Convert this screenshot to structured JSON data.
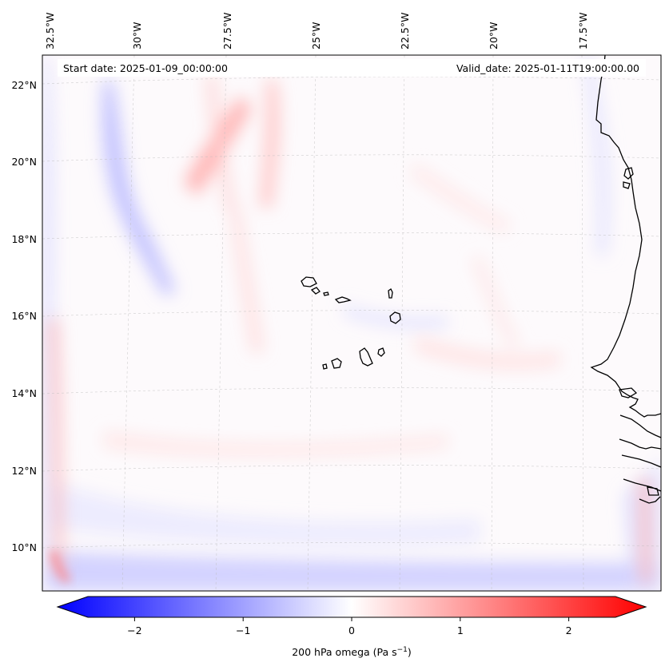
{
  "map": {
    "start_date": "Start date: 2025-01-09_00:00:00",
    "valid_date": "Valid_date: 2025-01-11T19:00:00.00",
    "lon_labels": [
      "32.5°W",
      "30°W",
      "27.5°W",
      "25°W",
      "22.5°W",
      "20°W",
      "17.5°W"
    ],
    "lat_labels": [
      "22°N",
      "20°N",
      "18°N",
      "16°N",
      "14°N",
      "12°N",
      "10°N"
    ],
    "region": "Cape Verde / West African coast"
  },
  "colorbar": {
    "ticks": [
      "−2",
      "−1",
      "0",
      "1",
      "2"
    ],
    "tick_values": [
      -2,
      -1,
      0,
      1,
      2
    ],
    "vmin": -2.5,
    "vmax": 2.5,
    "label_prefix": "200 hPa omega (Pa s",
    "label_exp": "−1",
    "label_suffix": ")",
    "colors": {
      "negative": "#0000ff",
      "zero": "#ffffff",
      "positive": "#ff0000"
    }
  }
}
